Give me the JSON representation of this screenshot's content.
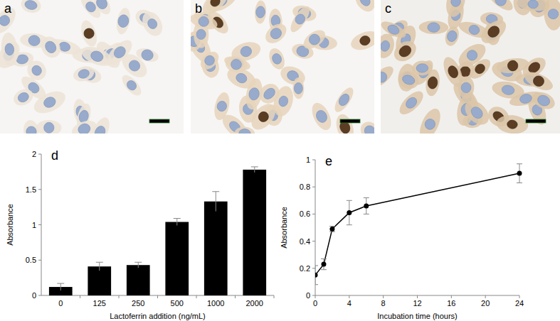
{
  "images": [
    {
      "label": "a"
    },
    {
      "label": "b"
    },
    {
      "label": "c"
    }
  ],
  "chart_data": [
    {
      "type": "bar",
      "annotations": [
        "d"
      ],
      "x_label": "Lactoferrin addition (ng/mL)",
      "y_label": "Absorbance",
      "categories": [
        "0",
        "125",
        "250",
        "500",
        "1000",
        "2000"
      ],
      "values": [
        0.12,
        0.41,
        0.43,
        1.04,
        1.33,
        1.78
      ],
      "errors": [
        0.05,
        0.06,
        0.04,
        0.05,
        0.14,
        0.04
      ],
      "color": "#000000",
      "ylim": [
        0,
        2
      ],
      "yticks": [
        0,
        0.5,
        1,
        1.5,
        2
      ],
      "grid": false
    },
    {
      "type": "line",
      "annotations": [
        "e"
      ],
      "x_label": "Incubation time (hours)",
      "y_label": "Absorbance",
      "x": [
        0,
        1,
        2,
        4,
        6,
        24
      ],
      "values": [
        0.15,
        0.23,
        0.49,
        0.61,
        0.66,
        0.9
      ],
      "errors": [
        0.07,
        0.04,
        0.02,
        0.09,
        0.06,
        0.07
      ],
      "color": "#000000",
      "marker": "circle",
      "line_style": "solid",
      "xlim": [
        0,
        24
      ],
      "xticks": [
        0,
        4,
        8,
        12,
        16,
        20,
        24
      ],
      "ylim": [
        0,
        1
      ],
      "yticks": [
        0,
        0.2,
        0.4,
        0.6,
        0.8,
        1
      ],
      "grid": false
    }
  ]
}
